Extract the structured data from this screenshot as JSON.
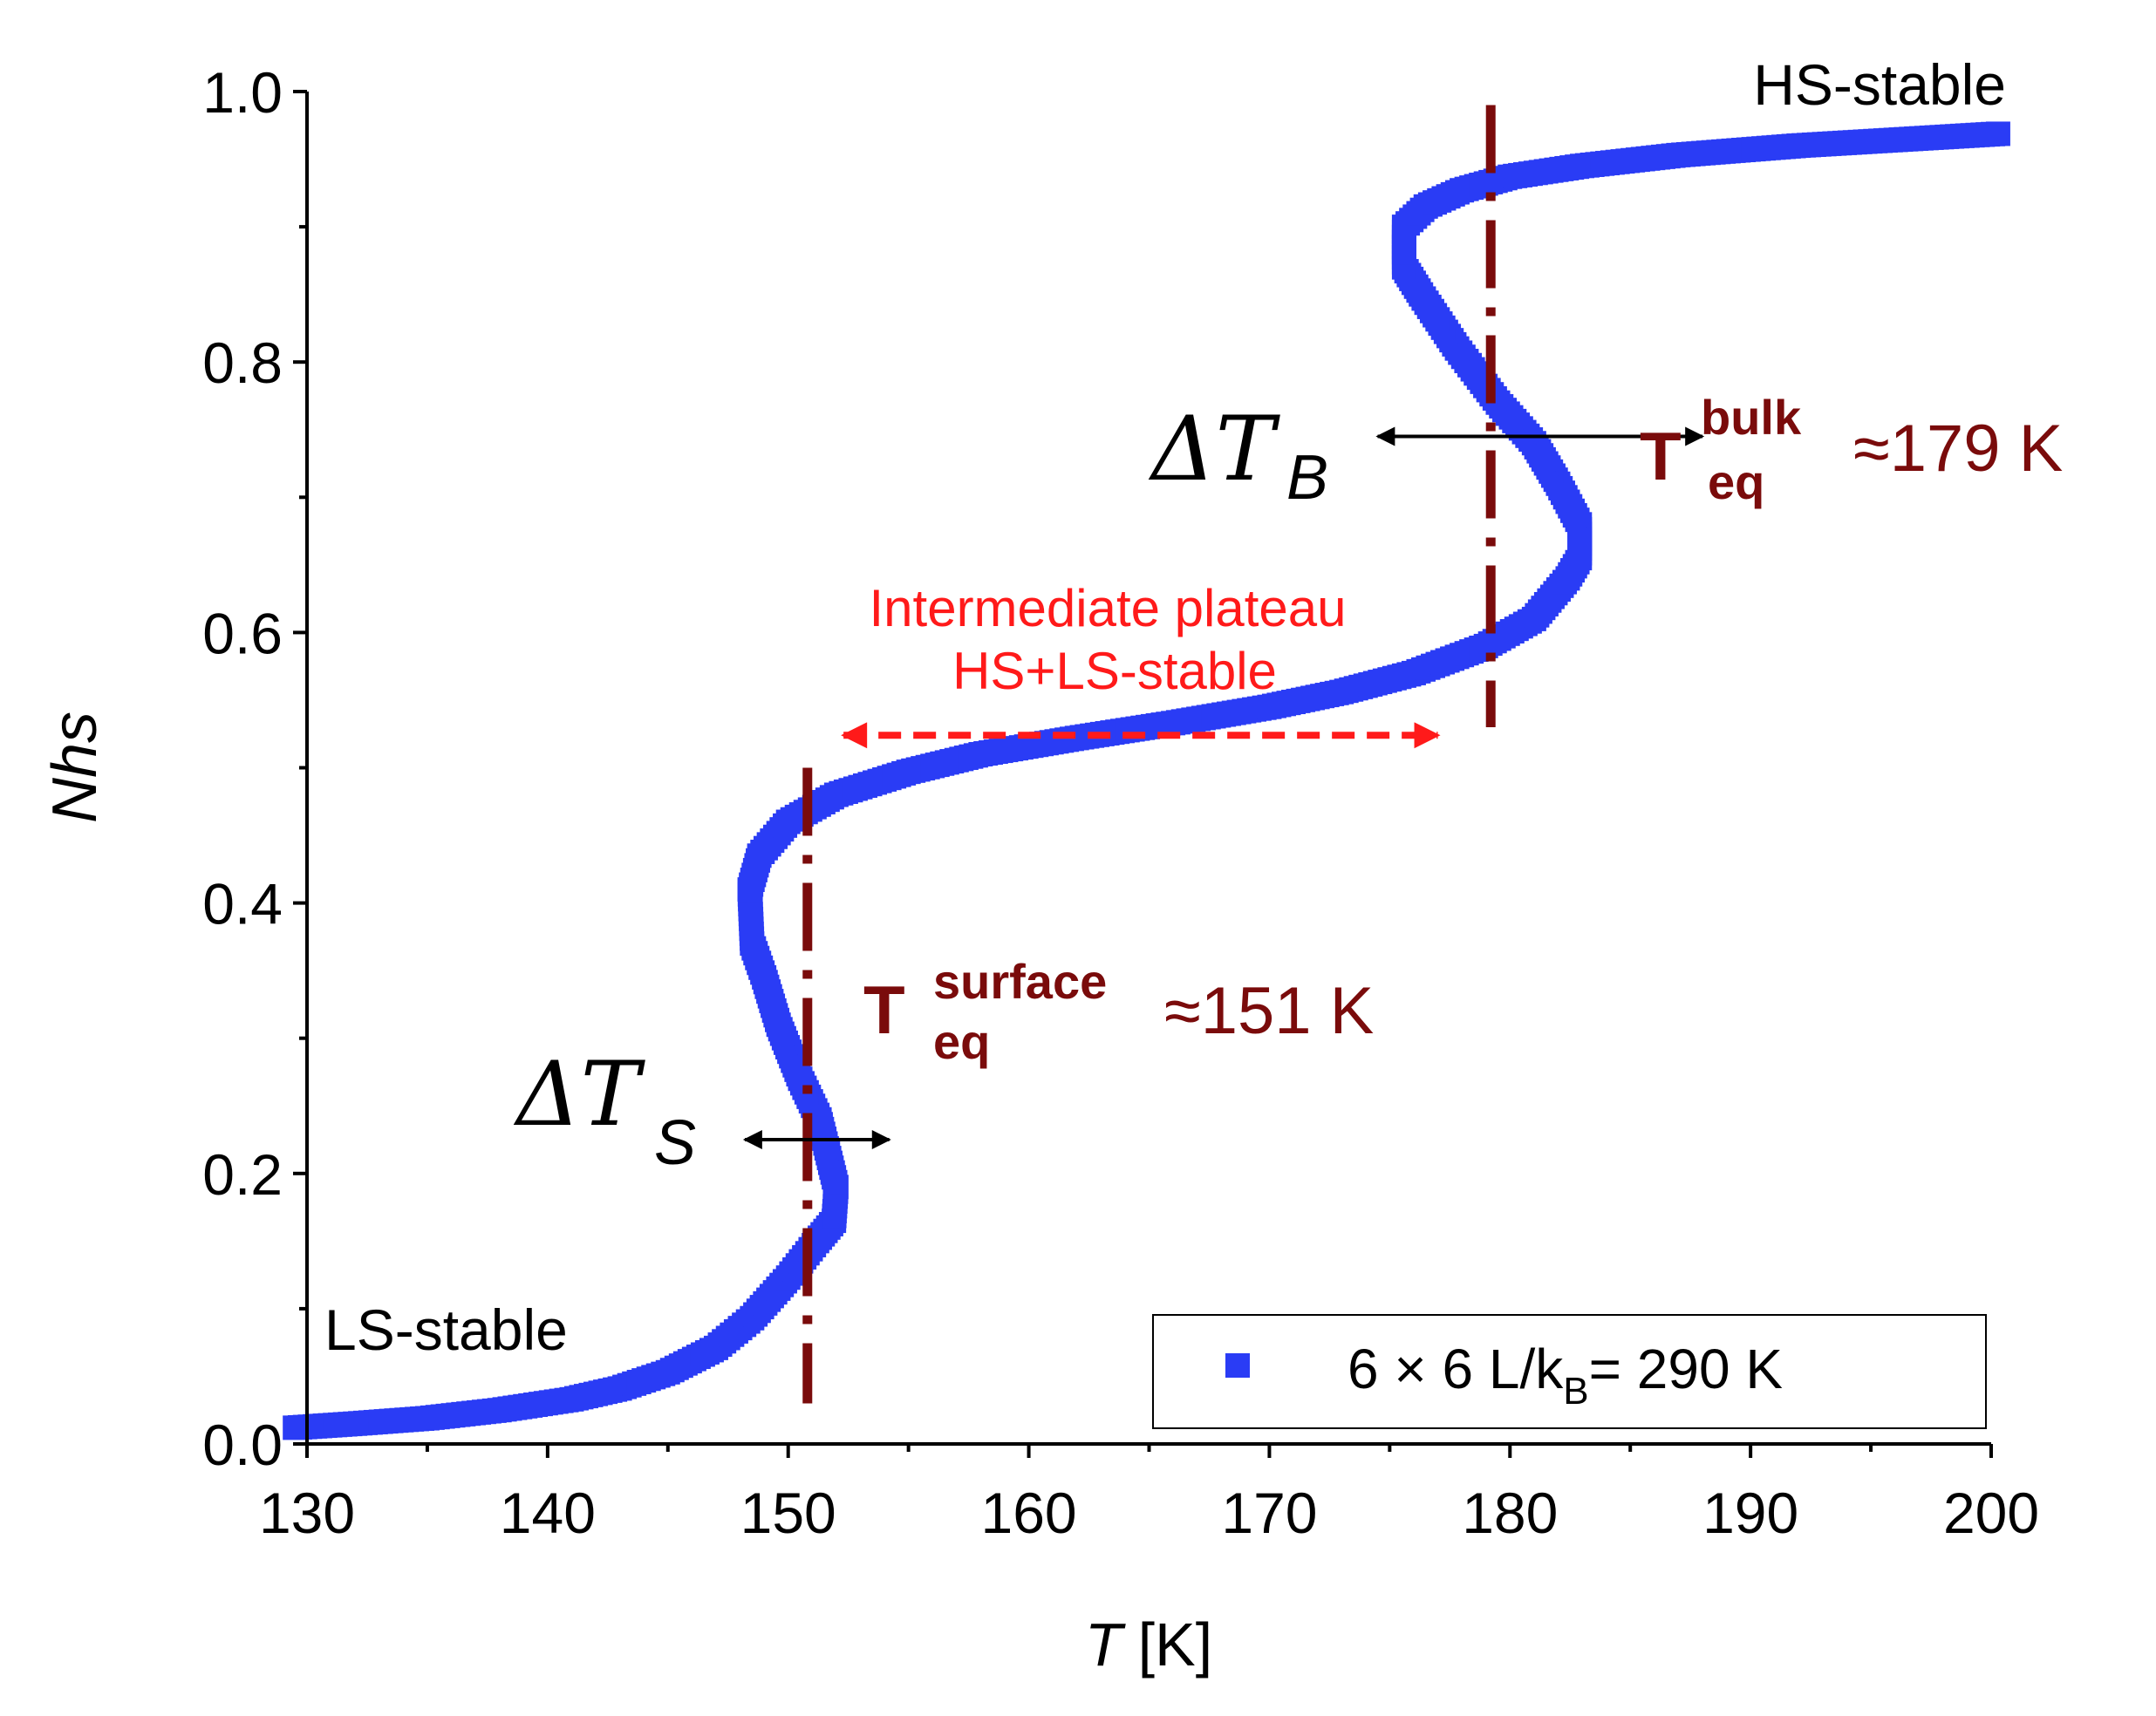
{
  "chart_data": {
    "type": "scatter",
    "xlabel": "T",
    "xlabel_unit": "[K]",
    "ylabel": "Nhs",
    "xlim": [
      130,
      200
    ],
    "ylim": [
      0.0,
      1.0
    ],
    "x_ticks": [
      "130",
      "140",
      "150",
      "160",
      "170",
      "180",
      "190",
      "200"
    ],
    "y_ticks": [
      "0.0",
      "0.2",
      "0.4",
      "0.6",
      "0.8",
      "1.0"
    ],
    "grid": false,
    "legend_position": "bottom-right",
    "series": [
      {
        "label": "6 × 6 L/k",
        "label_sub": "B",
        "label_tail": "= 290 K",
        "color": "#2a3cf5",
        "points": [
          [
            129.5,
            0.012
          ],
          [
            132,
            0.015
          ],
          [
            135,
            0.019
          ],
          [
            138,
            0.025
          ],
          [
            141,
            0.033
          ],
          [
            143,
            0.041
          ],
          [
            145,
            0.053
          ],
          [
            147,
            0.071
          ],
          [
            148.5,
            0.093
          ],
          [
            150,
            0.123
          ],
          [
            151.2,
            0.15
          ],
          [
            151.9,
            0.165
          ],
          [
            152,
            0.19
          ],
          [
            151.3,
            0.24
          ],
          [
            150.5,
            0.27
          ],
          [
            149.6,
            0.31
          ],
          [
            149.0,
            0.345
          ],
          [
            148.5,
            0.37
          ],
          [
            148.4,
            0.41
          ],
          [
            148.8,
            0.435
          ],
          [
            150,
            0.46
          ],
          [
            152,
            0.48
          ],
          [
            155,
            0.497
          ],
          [
            158,
            0.51
          ],
          [
            162,
            0.522
          ],
          [
            166,
            0.533
          ],
          [
            170,
            0.545
          ],
          [
            173,
            0.556
          ],
          [
            176,
            0.57
          ],
          [
            179,
            0.59
          ],
          [
            181,
            0.61
          ],
          [
            182.4,
            0.64
          ],
          [
            182.9,
            0.655
          ],
          [
            182.9,
            0.68
          ],
          [
            182,
            0.71
          ],
          [
            181,
            0.74
          ],
          [
            179.5,
            0.77
          ],
          [
            177.8,
            0.81
          ],
          [
            176.3,
            0.85
          ],
          [
            175.6,
            0.87
          ],
          [
            175.6,
            0.9
          ],
          [
            176.5,
            0.915
          ],
          [
            178,
            0.927
          ],
          [
            180,
            0.937
          ],
          [
            183,
            0.945
          ],
          [
            187,
            0.953
          ],
          [
            192,
            0.96
          ],
          [
            200.5,
            0.969
          ]
        ]
      }
    ],
    "vlines": [
      {
        "x": 179.2,
        "y_range": [
          0.53,
          0.99
        ],
        "color": "#7a0b0b"
      },
      {
        "x": 150.8,
        "y_range": [
          0.03,
          0.5
        ],
        "color": "#7a0b0b"
      }
    ],
    "arrows": [
      {
        "from": [
          188,
          0.745
        ],
        "to": [
          174.5,
          0.745
        ],
        "color": "#000000",
        "double": true
      },
      {
        "from": [
          148.2,
          0.225
        ],
        "to": [
          154.2,
          0.225
        ],
        "color": "#000000",
        "double": true
      },
      {
        "from": [
          152.3,
          0.524
        ],
        "to": [
          177,
          0.524
        ],
        "color": "#ff1a1a",
        "double": true,
        "dashed": true
      }
    ],
    "annotations": {
      "hs_stable": "HS-stable",
      "ls_stable": "LS-stable",
      "plateau_line1": "Intermediate plateau",
      "plateau_line2": "HS+LS-stable",
      "delta_b_main": "ΔT",
      "delta_b_sub": "B",
      "delta_s_main": "ΔT",
      "delta_s_sub": "S",
      "teq_bulk_T": "T",
      "teq_bulk_sup": "bulk",
      "teq_bulk_sub": "eq",
      "teq_bulk_val": "≈179 K",
      "teq_surf_T": "T",
      "teq_surf_sup": "surface",
      "teq_surf_sub": "eq",
      "teq_surf_val": "≈151 K"
    },
    "colors": {
      "dark_red": "#7a0b0b",
      "red": "#ff1a1a",
      "blue": "#2a3cf5"
    }
  }
}
